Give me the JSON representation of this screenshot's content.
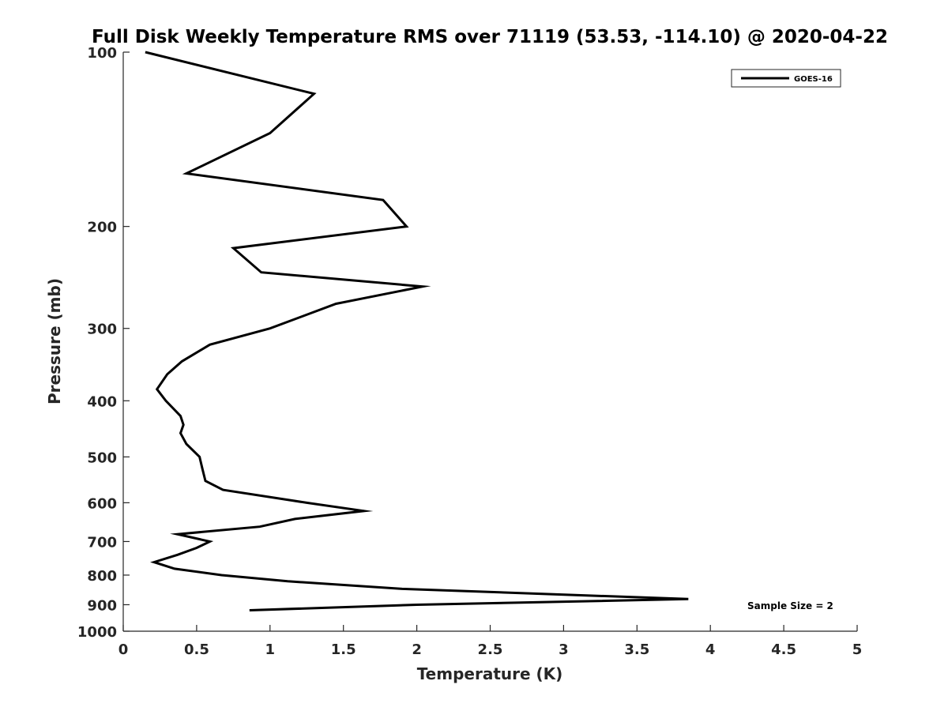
{
  "chart_data": {
    "type": "line",
    "title": "Full Disk Weekly Temperature RMS over 71119 (53.53, -114.10) @ 2020-04-22",
    "xlabel": "Temperature (K)",
    "ylabel": "Pressure (mb)",
    "xlim": [
      0,
      5
    ],
    "ylim": [
      100,
      1000
    ],
    "y_scale": "log",
    "y_direction": "reversed",
    "x_ticks": [
      0,
      0.5,
      1,
      1.5,
      2,
      2.5,
      3,
      3.5,
      4,
      4.5,
      5
    ],
    "x_tick_labels": [
      "0",
      "0.5",
      "1",
      "1.5",
      "2",
      "2.5",
      "3",
      "3.5",
      "4",
      "4.5",
      "5"
    ],
    "y_ticks": [
      100,
      200,
      300,
      400,
      500,
      600,
      700,
      800,
      900,
      1000
    ],
    "y_tick_labels": [
      "100",
      "200",
      "300",
      "400",
      "500",
      "600",
      "700",
      "800",
      "900",
      "1000"
    ],
    "grid": false,
    "legend_position": "top-right",
    "series": [
      {
        "name": "GOES-16",
        "color": "#000000",
        "points": [
          {
            "x": 0.15,
            "y": 100
          },
          {
            "x": 1.3,
            "y": 118
          },
          {
            "x": 1.0,
            "y": 138
          },
          {
            "x": 0.43,
            "y": 162
          },
          {
            "x": 1.77,
            "y": 180
          },
          {
            "x": 1.93,
            "y": 200
          },
          {
            "x": 0.75,
            "y": 218
          },
          {
            "x": 0.94,
            "y": 240
          },
          {
            "x": 2.04,
            "y": 254
          },
          {
            "x": 1.45,
            "y": 272
          },
          {
            "x": 1.0,
            "y": 300
          },
          {
            "x": 0.59,
            "y": 320
          },
          {
            "x": 0.4,
            "y": 342
          },
          {
            "x": 0.3,
            "y": 360
          },
          {
            "x": 0.23,
            "y": 382
          },
          {
            "x": 0.29,
            "y": 400
          },
          {
            "x": 0.39,
            "y": 425
          },
          {
            "x": 0.41,
            "y": 440
          },
          {
            "x": 0.39,
            "y": 455
          },
          {
            "x": 0.43,
            "y": 475
          },
          {
            "x": 0.52,
            "y": 500
          },
          {
            "x": 0.54,
            "y": 525
          },
          {
            "x": 0.56,
            "y": 550
          },
          {
            "x": 0.68,
            "y": 570
          },
          {
            "x": 1.25,
            "y": 600
          },
          {
            "x": 1.64,
            "y": 620
          },
          {
            "x": 1.17,
            "y": 640
          },
          {
            "x": 0.93,
            "y": 660
          },
          {
            "x": 0.37,
            "y": 680
          },
          {
            "x": 0.59,
            "y": 700
          },
          {
            "x": 0.5,
            "y": 718
          },
          {
            "x": 0.37,
            "y": 738
          },
          {
            "x": 0.21,
            "y": 760
          },
          {
            "x": 0.35,
            "y": 780
          },
          {
            "x": 0.67,
            "y": 800
          },
          {
            "x": 1.12,
            "y": 820
          },
          {
            "x": 1.9,
            "y": 845
          },
          {
            "x": 3.85,
            "y": 880
          },
          {
            "x": 2.0,
            "y": 900
          },
          {
            "x": 0.86,
            "y": 920
          }
        ]
      }
    ],
    "annotations": [
      {
        "text": "Sample Size = 2",
        "position": "bottom-right"
      }
    ]
  }
}
